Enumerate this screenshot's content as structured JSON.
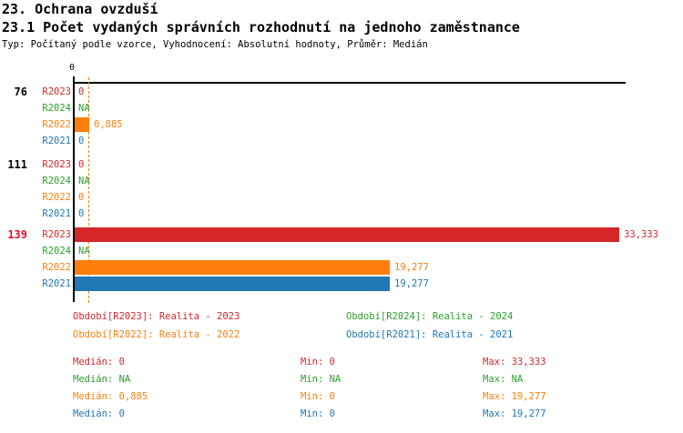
{
  "page": {
    "title": "23. Ochrana ovzduší",
    "subtitle": "23.1 Počet vydaných správních rozhodnutí na jednoho zaměstnance",
    "meta": "Typ: Počítaný podle vzorce, Vyhodnocení: Absolutní hodnoty, Průměr: Medián"
  },
  "colors": {
    "R2023": "#d62728",
    "R2024": "#2ca02c",
    "R2022": "#ff7f0e",
    "R2021": "#1f77b4",
    "highlight_id": "#e8112d",
    "group_id": "#000000",
    "axis": "#000000",
    "median_line": "#ff7f0e"
  },
  "chart_data": {
    "type": "bar",
    "orientation": "horizontal",
    "title": "23.1 Počet vydaných správních rozhodnutí na jednoho zaměstnance",
    "x_axis": {
      "tick_labels": [
        "0"
      ],
      "min": 0,
      "max": 33.75,
      "grid": false
    },
    "median_line_value": 0.885,
    "series_order": [
      "R2023",
      "R2024",
      "R2022",
      "R2021"
    ],
    "groups": [
      {
        "id": "76",
        "highlighted": false,
        "bars": [
          {
            "series": "R2023",
            "value": 0,
            "display": "0"
          },
          {
            "series": "R2024",
            "value": null,
            "display": "NA"
          },
          {
            "series": "R2022",
            "value": 0.885,
            "display": "0,885"
          },
          {
            "series": "R2021",
            "value": 0,
            "display": "0"
          }
        ]
      },
      {
        "id": "111",
        "highlighted": false,
        "bars": [
          {
            "series": "R2023",
            "value": 0,
            "display": "0"
          },
          {
            "series": "R2024",
            "value": null,
            "display": "NA"
          },
          {
            "series": "R2022",
            "value": 0,
            "display": "0"
          },
          {
            "series": "R2021",
            "value": 0,
            "display": "0"
          }
        ]
      },
      {
        "id": "139",
        "highlighted": true,
        "bars": [
          {
            "series": "R2023",
            "value": 33.333,
            "display": "33,333"
          },
          {
            "series": "R2024",
            "value": null,
            "display": "NA"
          },
          {
            "series": "R2022",
            "value": 19.277,
            "display": "19,277"
          },
          {
            "series": "R2021",
            "value": 19.277,
            "display": "19,277"
          }
        ]
      }
    ]
  },
  "legend": {
    "items": [
      {
        "series": "R2023",
        "label": "Období[R2023]: Realita - 2023"
      },
      {
        "series": "R2024",
        "label": "Období[R2024]: Realita - 2024"
      },
      {
        "series": "R2022",
        "label": "Období[R2022]: Realita - 2022"
      },
      {
        "series": "R2021",
        "label": "Období[R2021]: Realita - 2021"
      }
    ]
  },
  "stats": {
    "rows": [
      {
        "series": "R2023",
        "median": "Medián: 0",
        "min": "Min: 0",
        "max": "Max: 33,333"
      },
      {
        "series": "R2024",
        "median": "Medián: NA",
        "min": "Min: NA",
        "max": "Max: NA"
      },
      {
        "series": "R2022",
        "median": "Medián: 0,885",
        "min": "Min: 0",
        "max": "Max: 19,277"
      },
      {
        "series": "R2021",
        "median": "Medián: 0",
        "min": "Min: 0",
        "max": "Max: 19,277"
      }
    ]
  }
}
